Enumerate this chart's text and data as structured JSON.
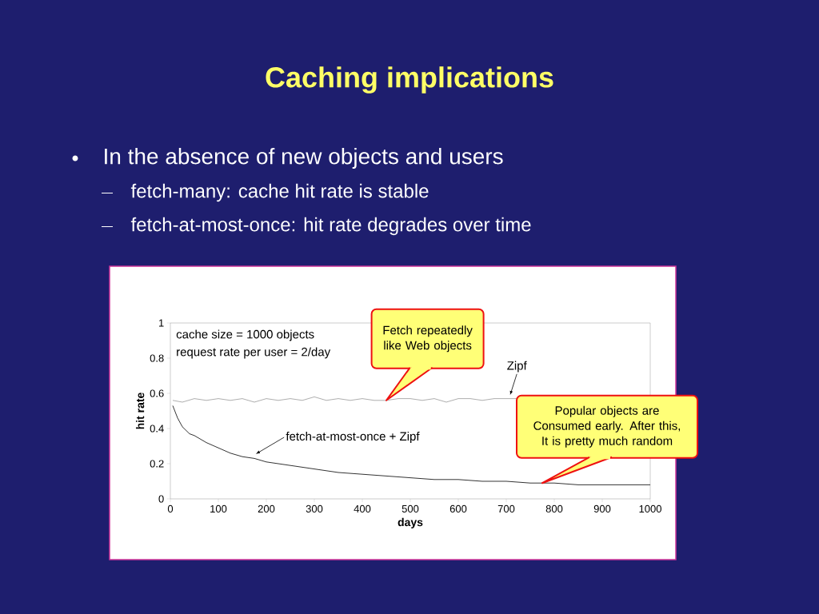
{
  "chart_data": {
    "type": "line",
    "title": "Caching implications",
    "annotations": [
      "In the absence of new objects and users",
      "fetch-many:  cache hit rate is stable",
      "fetch-at-most-once:  hit rate degrades over time",
      "cache size = 1000 objects",
      "request rate per user = 2/day",
      "Fetch repeatedly like Web objects",
      "Popular objects are Consumed early. After this, It is pretty much random"
    ],
    "xlabel": "days",
    "ylabel": "hit rate",
    "xlim": [
      0,
      1000
    ],
    "ylim": [
      0,
      1
    ],
    "xticks": [
      0,
      100,
      200,
      300,
      400,
      500,
      600,
      700,
      800,
      900,
      1000
    ],
    "yticks": [
      0,
      0.2,
      0.4,
      0.6,
      0.8,
      1
    ],
    "marker": "none",
    "line_style": "solid",
    "series": [
      {
        "name": "Zipf",
        "color": "#999999",
        "x": [
          5,
          25,
          50,
          75,
          100,
          125,
          150,
          175,
          200,
          225,
          250,
          275,
          300,
          325,
          350,
          375,
          400,
          425,
          450,
          475,
          500,
          525,
          550,
          575,
          600,
          625,
          650,
          675,
          700,
          725
        ],
        "values": [
          0.56,
          0.55,
          0.57,
          0.56,
          0.57,
          0.56,
          0.57,
          0.55,
          0.57,
          0.56,
          0.57,
          0.56,
          0.58,
          0.56,
          0.57,
          0.56,
          0.57,
          0.56,
          0.56,
          0.57,
          0.57,
          0.56,
          0.57,
          0.55,
          0.57,
          0.57,
          0.56,
          0.57,
          0.57,
          0.57
        ]
      },
      {
        "name": "fetch-at-most-once + Zipf",
        "color": "#000000",
        "x": [
          5,
          15,
          25,
          40,
          50,
          75,
          100,
          125,
          150,
          175,
          200,
          250,
          300,
          350,
          400,
          450,
          500,
          550,
          600,
          650,
          700,
          750,
          800,
          850,
          900,
          950,
          1000
        ],
        "values": [
          0.53,
          0.46,
          0.41,
          0.37,
          0.36,
          0.32,
          0.29,
          0.26,
          0.24,
          0.23,
          0.21,
          0.19,
          0.17,
          0.15,
          0.14,
          0.13,
          0.12,
          0.11,
          0.11,
          0.1,
          0.1,
          0.09,
          0.09,
          0.08,
          0.08,
          0.08,
          0.08
        ]
      }
    ]
  }
}
